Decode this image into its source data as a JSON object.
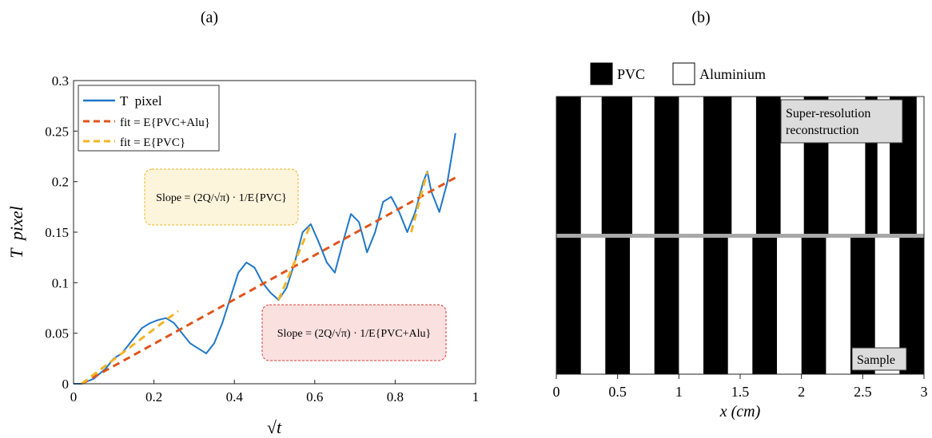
{
  "panel_labels": {
    "a": "(a)",
    "b": "(b)"
  },
  "colors": {
    "data_line": "#1f77c8",
    "fit_all": "#e0541c",
    "fit_pvc": "#f2b524",
    "annot_pvc_bg": "#fdf4dc",
    "annot_pvc_border": "#f2b524",
    "annot_alu_bg": "#fbe0e0",
    "annot_alu_border": "#e33b3b",
    "pvc": "#000000",
    "aluminium": "#ffffff"
  },
  "chart_a": {
    "ylabel": "T  pixel",
    "xlabel": "√t",
    "legend": {
      "items": [
        {
          "label": "T  pixel"
        },
        {
          "label": "fit = E{PVC+Alu}"
        },
        {
          "label": "fit = E{PVC}"
        }
      ]
    },
    "annotations": {
      "pvc": "Slope = (2Q/√π) · 1/E{PVC}",
      "alu": "Slope = (2Q/√π) · 1/E{PVC+Alu}"
    }
  },
  "chart_b": {
    "xlabel": "x (cm)",
    "legend": {
      "pvc": "PVC",
      "aluminium": "Aluminium"
    },
    "top_label_line1": "Super-resolution",
    "top_label_line2": "reconstruction",
    "bottom_label": "Sample"
  },
  "chart_data": [
    {
      "type": "line",
      "xlim": [
        0,
        1
      ],
      "ylim": [
        0,
        0.3
      ],
      "xticks": [
        0,
        0.2,
        0.4,
        0.6,
        0.8,
        1
      ],
      "yticks": [
        0,
        0.05,
        0.1,
        0.15,
        0.2,
        0.25,
        0.3
      ],
      "xtick_labels": [
        "0",
        "0.2",
        "0.4",
        "0.6",
        "0.8",
        "1"
      ],
      "ytick_labels": [
        "0",
        "0.05",
        "0.1",
        "0.15",
        "0.2",
        "0.25",
        "0.3"
      ],
      "legend_position": "top-left",
      "series": [
        {
          "name": "T pixel",
          "x": [
            0.0,
            0.02,
            0.05,
            0.08,
            0.1,
            0.12,
            0.15,
            0.17,
            0.19,
            0.21,
            0.23,
            0.25,
            0.27,
            0.29,
            0.31,
            0.33,
            0.35,
            0.37,
            0.39,
            0.41,
            0.43,
            0.45,
            0.47,
            0.49,
            0.51,
            0.53,
            0.55,
            0.57,
            0.59,
            0.61,
            0.63,
            0.65,
            0.67,
            0.69,
            0.71,
            0.73,
            0.75,
            0.77,
            0.79,
            0.81,
            0.83,
            0.85,
            0.87,
            0.88,
            0.89,
            0.91,
            0.93,
            0.95
          ],
          "y": [
            0.0,
            0.0,
            0.005,
            0.015,
            0.025,
            0.03,
            0.045,
            0.055,
            0.06,
            0.063,
            0.065,
            0.06,
            0.05,
            0.04,
            0.035,
            0.03,
            0.04,
            0.06,
            0.085,
            0.11,
            0.12,
            0.115,
            0.1,
            0.09,
            0.083,
            0.095,
            0.12,
            0.15,
            0.158,
            0.14,
            0.12,
            0.11,
            0.14,
            0.168,
            0.16,
            0.13,
            0.15,
            0.18,
            0.185,
            0.17,
            0.15,
            0.17,
            0.2,
            0.21,
            0.19,
            0.17,
            0.2,
            0.248
          ]
        },
        {
          "name": "fit = E{PVC+Alu}",
          "x": [
            0.02,
            0.95
          ],
          "y": [
            0.0,
            0.204
          ]
        },
        {
          "name": "fit = E{PVC}",
          "segments": [
            {
              "x": [
                0.02,
                0.26
              ],
              "y": [
                0.0,
                0.072
              ]
            },
            {
              "x": [
                0.51,
                0.59
              ],
              "y": [
                0.083,
                0.158
              ]
            },
            {
              "x": [
                0.84,
                0.88
              ],
              "y": [
                0.15,
                0.21
              ]
            }
          ]
        }
      ]
    },
    {
      "type": "heatmap",
      "xlim": [
        0,
        3
      ],
      "xticks": [
        0,
        0.5,
        1,
        1.5,
        2,
        2.5,
        3
      ],
      "xtick_labels": [
        "0",
        "0.5",
        "1",
        "1.5",
        "2",
        "2.5",
        "3"
      ],
      "rows": [
        {
          "name": "Super-resolution reconstruction",
          "pvc_segments": [
            [
              0,
              0.2
            ],
            [
              0.37,
              0.62
            ],
            [
              0.8,
              1.0
            ],
            [
              1.2,
              1.43
            ],
            [
              1.63,
              1.83
            ],
            [
              2.02,
              2.22
            ],
            [
              2.52,
              2.62
            ],
            [
              2.72,
              2.94
            ]
          ]
        },
        {
          "name": "Sample",
          "pvc_segments": [
            [
              0,
              0.2
            ],
            [
              0.4,
              0.6
            ],
            [
              0.8,
              1.0
            ],
            [
              1.2,
              1.4
            ],
            [
              1.6,
              1.8
            ],
            [
              2.0,
              2.2
            ],
            [
              2.4,
              2.6
            ],
            [
              2.8,
              3.0
            ]
          ]
        }
      ]
    }
  ]
}
